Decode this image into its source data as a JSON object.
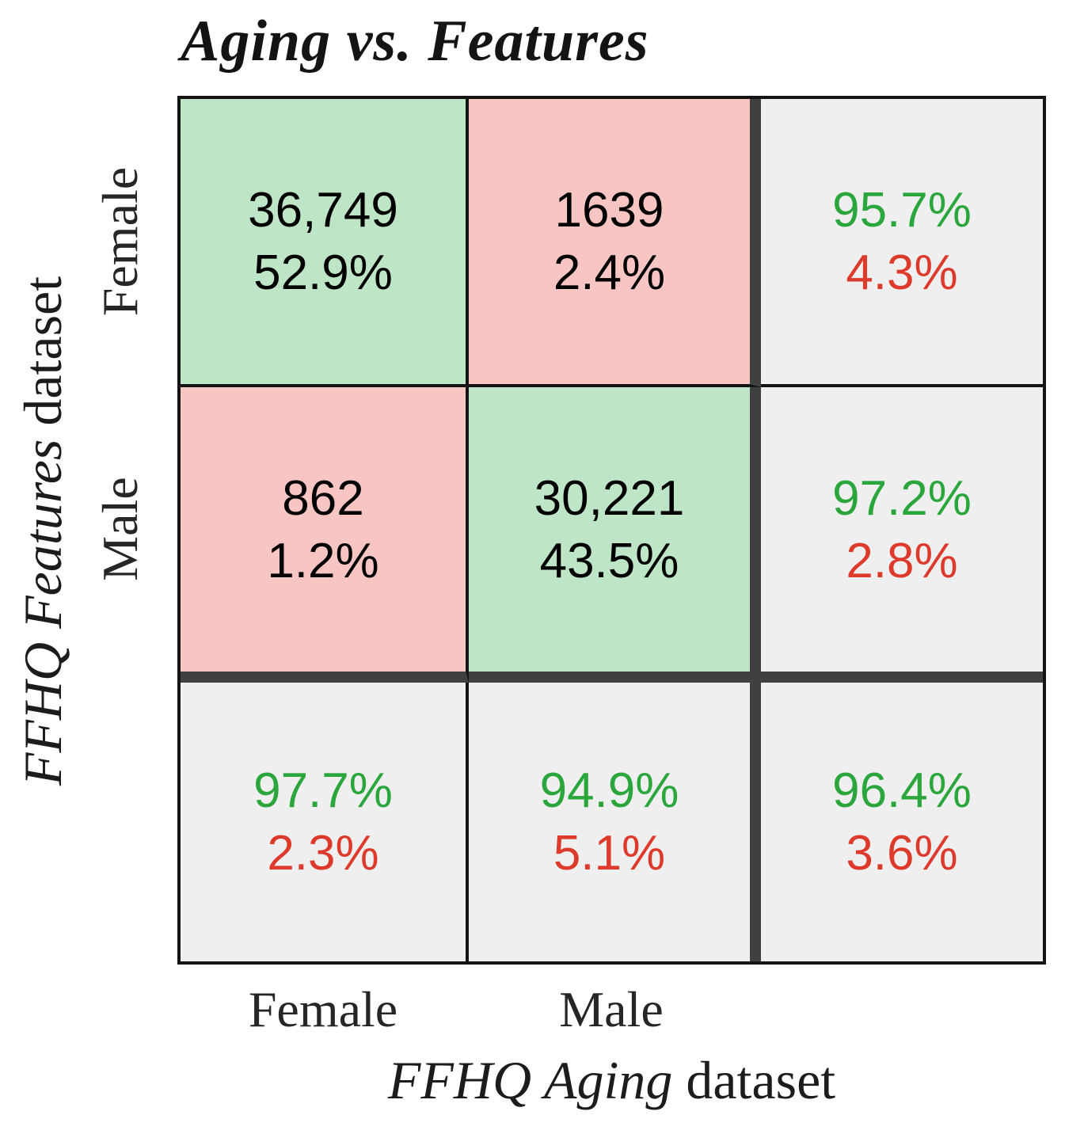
{
  "title": "Aging vs. Features",
  "x_axis": {
    "label_italic": "FFHQ Aging",
    "label_regular": "dataset",
    "tick_labels": [
      "Female",
      "Male"
    ]
  },
  "y_axis": {
    "label_italic": "FFHQ Features",
    "label_regular": "dataset",
    "tick_labels": [
      "Female",
      "Male"
    ]
  },
  "colors": {
    "match_cell_bg": "#BEE5C6",
    "mismatch_cell_bg": "#F8C6C2",
    "summary_cell_bg": "#EFEFEF",
    "agree_text": "#2BA63C",
    "disagree_text": "#DE3A2B",
    "thick_separator": "#404040",
    "grid_line": "#141414"
  },
  "chart_data": {
    "type": "heatmap",
    "subtype": "confusion-matrix",
    "title": "Aging vs. Features",
    "xlabel": "FFHQ Aging dataset",
    "ylabel": "FFHQ Features dataset",
    "categories": [
      "Female",
      "Male"
    ],
    "legend_position": "none",
    "grid": true,
    "matrix": [
      {
        "row": "Female",
        "cells": [
          {
            "col": "Female",
            "count": "36,749",
            "percent": "52.9%",
            "kind": "match"
          },
          {
            "col": "Male",
            "count": "1639",
            "percent": "2.4%",
            "kind": "mismatch"
          }
        ],
        "summary": {
          "agree": "95.7%",
          "disagree": "4.3%"
        }
      },
      {
        "row": "Male",
        "cells": [
          {
            "col": "Female",
            "count": "862",
            "percent": "1.2%",
            "kind": "mismatch"
          },
          {
            "col": "Male",
            "count": "30,221",
            "percent": "43.5%",
            "kind": "match"
          }
        ],
        "summary": {
          "agree": "97.2%",
          "disagree": "2.8%"
        }
      }
    ],
    "column_summaries": [
      {
        "col": "Female",
        "agree": "97.7%",
        "disagree": "2.3%"
      },
      {
        "col": "Male",
        "agree": "94.9%",
        "disagree": "5.1%"
      }
    ],
    "overall": {
      "agree": "96.4%",
      "disagree": "3.6%"
    }
  }
}
